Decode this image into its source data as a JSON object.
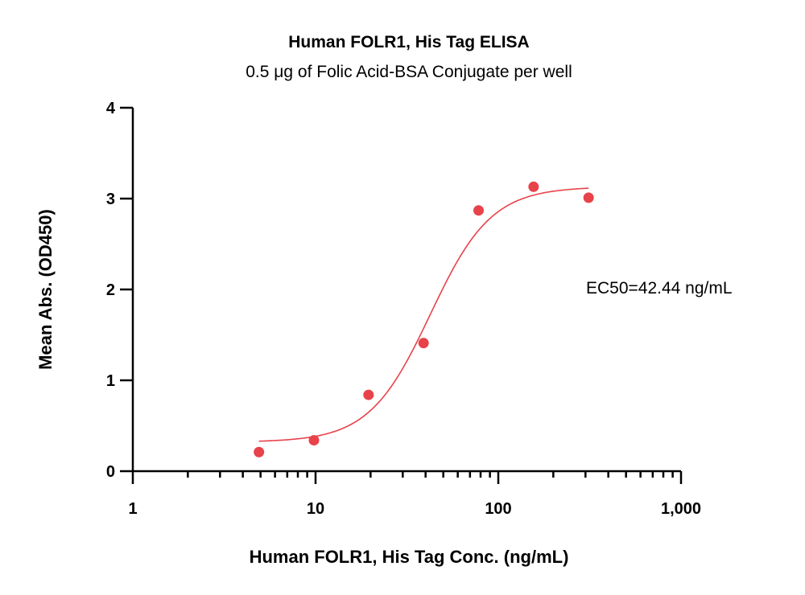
{
  "chart_data": {
    "type": "scatter",
    "title": "Human FOLR1, His Tag ELISA",
    "subtitle": "0.5 μg of Folic Acid-BSA Conjugate per well",
    "xlabel": "Human FOLR1, His Tag Conc. (ng/mL)",
    "ylabel": "Mean Abs. (OD450)",
    "x_scale": "log",
    "xlim": [
      1,
      1000
    ],
    "ylim": [
      0,
      4
    ],
    "x_ticks": [
      1,
      10,
      100,
      1000
    ],
    "x_tick_labels": [
      "1",
      "10",
      "100",
      "1,000"
    ],
    "y_ticks": [
      0,
      1,
      2,
      3,
      4
    ],
    "y_tick_labels": [
      "0",
      "1",
      "2",
      "3",
      "4"
    ],
    "grid": false,
    "legend": "none",
    "series": [
      {
        "x": [
          4.9,
          9.8,
          19.5,
          39,
          78,
          156,
          312
        ],
        "y": [
          0.21,
          0.34,
          0.84,
          1.41,
          2.87,
          3.13,
          3.01
        ],
        "color": "#e8424a"
      }
    ],
    "fit_curve": {
      "model": "4PL",
      "bottom": 0.32,
      "top": 3.13,
      "ec50": 42.44,
      "hill": 2.6,
      "x_range": [
        4.9,
        312
      ],
      "color": "#e8424a"
    },
    "annotations": [
      {
        "text": "EC50=42.44 ng/mL"
      }
    ]
  }
}
